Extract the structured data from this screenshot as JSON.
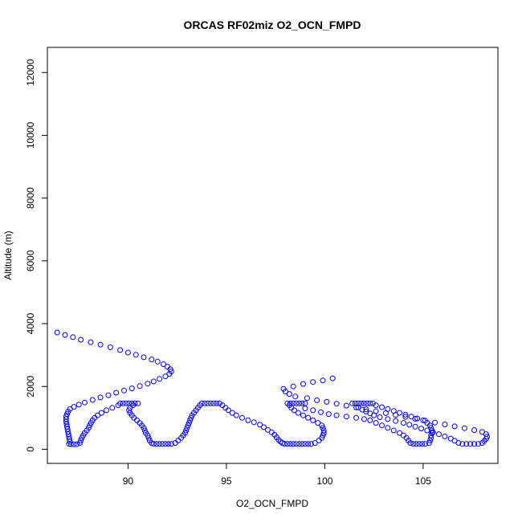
{
  "chart_data": {
    "type": "scatter",
    "title": "ORCAS RF02miz O2_OCN_FMPD",
    "xlabel": "O2_OCN_FMPD",
    "ylabel": "Altitude (m)",
    "xlim": [
      85.9,
      108.8
    ],
    "ylim": [
      -450,
      12800
    ],
    "x_ticks": [
      90,
      95,
      100,
      105
    ],
    "y_ticks": [
      0,
      2000,
      4000,
      6000,
      8000,
      10000,
      12000
    ],
    "marker": "open-circle",
    "color": "#0000ff",
    "series": [
      {
        "points": [
          [
            86.4,
            3720
          ],
          [
            86.8,
            3640
          ],
          [
            87.2,
            3570
          ],
          [
            87.6,
            3490
          ],
          [
            88.1,
            3410
          ],
          [
            88.6,
            3330
          ],
          [
            89.1,
            3250
          ],
          [
            89.6,
            3160
          ],
          [
            90.0,
            3080
          ],
          [
            90.4,
            3010
          ],
          [
            90.8,
            2930
          ],
          [
            91.2,
            2860
          ],
          [
            91.5,
            2790
          ],
          [
            91.8,
            2710
          ],
          [
            92.0,
            2630
          ],
          [
            92.15,
            2550
          ],
          [
            92.2,
            2480
          ],
          [
            92.1,
            2400
          ],
          [
            91.9,
            2320
          ],
          [
            91.6,
            2240
          ],
          [
            91.3,
            2160
          ],
          [
            91.0,
            2090
          ],
          [
            90.6,
            2010
          ],
          [
            90.2,
            1940
          ],
          [
            89.8,
            1870
          ],
          [
            89.4,
            1800
          ],
          [
            89.0,
            1720
          ],
          [
            88.6,
            1650
          ],
          [
            88.2,
            1570
          ],
          [
            87.8,
            1490
          ],
          [
            87.5,
            1420
          ],
          [
            87.25,
            1350
          ],
          [
            87.05,
            1280
          ],
          [
            86.95,
            1200
          ],
          [
            86.9,
            1120
          ],
          [
            86.85,
            1040
          ],
          [
            86.85,
            960
          ],
          [
            86.85,
            880
          ],
          [
            86.88,
            800
          ],
          [
            86.9,
            720
          ],
          [
            86.92,
            640
          ],
          [
            86.95,
            560
          ],
          [
            86.97,
            480
          ],
          [
            87.0,
            400
          ],
          [
            87.02,
            320
          ],
          [
            87.05,
            240
          ],
          [
            87.0,
            170
          ],
          [
            87.1,
            160
          ],
          [
            87.25,
            160
          ],
          [
            87.4,
            160
          ],
          [
            87.55,
            200
          ],
          [
            87.6,
            280
          ],
          [
            87.65,
            360
          ],
          [
            87.72,
            440
          ],
          [
            87.8,
            520
          ],
          [
            87.9,
            600
          ],
          [
            88.0,
            680
          ],
          [
            88.05,
            760
          ],
          [
            88.12,
            840
          ],
          [
            88.2,
            920
          ],
          [
            88.3,
            1000
          ],
          [
            88.45,
            1080
          ],
          [
            88.65,
            1160
          ],
          [
            88.9,
            1240
          ],
          [
            89.2,
            1320
          ],
          [
            89.5,
            1400
          ],
          [
            89.6,
            1460
          ],
          [
            89.75,
            1460
          ],
          [
            89.9,
            1460
          ],
          [
            90.05,
            1460
          ],
          [
            90.2,
            1460
          ],
          [
            90.35,
            1460
          ],
          [
            90.5,
            1460
          ],
          [
            90.25,
            1400
          ],
          [
            90.1,
            1320
          ],
          [
            90.05,
            1240
          ],
          [
            90.1,
            1160
          ],
          [
            90.2,
            1080
          ],
          [
            90.3,
            1000
          ],
          [
            90.45,
            920
          ],
          [
            90.6,
            840
          ],
          [
            90.7,
            760
          ],
          [
            90.8,
            680
          ],
          [
            90.85,
            600
          ],
          [
            90.9,
            520
          ],
          [
            91.0,
            440
          ],
          [
            91.05,
            360
          ],
          [
            91.1,
            280
          ],
          [
            91.2,
            200
          ],
          [
            91.3,
            170
          ],
          [
            91.45,
            170
          ],
          [
            91.6,
            170
          ],
          [
            91.75,
            170
          ],
          [
            91.9,
            170
          ],
          [
            92.05,
            170
          ],
          [
            92.2,
            170
          ],
          [
            92.4,
            200
          ],
          [
            92.55,
            280
          ],
          [
            92.7,
            360
          ],
          [
            92.8,
            440
          ],
          [
            92.9,
            520
          ],
          [
            92.95,
            600
          ],
          [
            93.0,
            680
          ],
          [
            93.05,
            760
          ],
          [
            93.1,
            840
          ],
          [
            93.15,
            920
          ],
          [
            93.2,
            1000
          ],
          [
            93.25,
            1080
          ],
          [
            93.35,
            1160
          ],
          [
            93.45,
            1240
          ],
          [
            93.55,
            1320
          ],
          [
            93.65,
            1400
          ],
          [
            93.75,
            1460
          ],
          [
            93.9,
            1460
          ],
          [
            94.05,
            1460
          ],
          [
            94.2,
            1460
          ],
          [
            94.35,
            1460
          ],
          [
            94.5,
            1460
          ],
          [
            94.65,
            1460
          ],
          [
            94.8,
            1400
          ],
          [
            94.95,
            1320
          ],
          [
            95.1,
            1240
          ],
          [
            95.3,
            1160
          ],
          [
            95.5,
            1080
          ],
          [
            95.8,
            1000
          ],
          [
            96.1,
            920
          ],
          [
            96.4,
            860
          ],
          [
            96.7,
            780
          ],
          [
            96.9,
            700
          ],
          [
            97.1,
            620
          ],
          [
            97.3,
            540
          ],
          [
            97.45,
            460
          ],
          [
            97.55,
            380
          ],
          [
            97.65,
            300
          ],
          [
            97.75,
            240
          ],
          [
            97.85,
            200
          ],
          [
            97.95,
            170
          ],
          [
            98.1,
            170
          ],
          [
            98.25,
            170
          ],
          [
            98.4,
            170
          ],
          [
            98.55,
            170
          ],
          [
            98.7,
            170
          ],
          [
            98.85,
            170
          ],
          [
            99.0,
            170
          ],
          [
            99.15,
            170
          ],
          [
            99.3,
            170
          ],
          [
            99.5,
            200
          ],
          [
            99.7,
            280
          ],
          [
            99.85,
            360
          ],
          [
            99.9,
            440
          ],
          [
            99.95,
            520
          ],
          [
            99.95,
            600
          ],
          [
            99.9,
            680
          ],
          [
            99.85,
            760
          ],
          [
            99.65,
            840
          ],
          [
            99.4,
            920
          ],
          [
            99.15,
            1000
          ],
          [
            98.9,
            1080
          ],
          [
            98.65,
            1160
          ],
          [
            98.45,
            1240
          ],
          [
            98.3,
            1320
          ],
          [
            98.2,
            1400
          ],
          [
            98.1,
            1460
          ],
          [
            98.25,
            1460
          ],
          [
            98.4,
            1460
          ],
          [
            98.55,
            1460
          ],
          [
            98.7,
            1460
          ],
          [
            98.85,
            1460
          ],
          [
            99.0,
            1460
          ],
          [
            97.9,
            1920
          ],
          [
            98.0,
            1840
          ],
          [
            98.4,
            2000
          ],
          [
            98.9,
            2080
          ],
          [
            99.4,
            2140
          ],
          [
            99.9,
            2190
          ],
          [
            100.4,
            2260
          ],
          [
            98.2,
            1760
          ],
          [
            98.5,
            1680
          ],
          [
            99.1,
            1630
          ],
          [
            99.6,
            1560
          ],
          [
            100.1,
            1510
          ],
          [
            100.6,
            1450
          ],
          [
            101.1,
            1390
          ],
          [
            101.6,
            1330
          ],
          [
            102.1,
            1270
          ],
          [
            102.6,
            1210
          ],
          [
            103.1,
            1150
          ],
          [
            103.6,
            1090
          ],
          [
            104.1,
            1030
          ],
          [
            104.6,
            970
          ],
          [
            105.1,
            910
          ],
          [
            105.6,
            850
          ],
          [
            106.1,
            790
          ],
          [
            106.6,
            730
          ],
          [
            107.1,
            670
          ],
          [
            107.6,
            610
          ],
          [
            108.0,
            550
          ],
          [
            108.2,
            480
          ],
          [
            108.25,
            400
          ],
          [
            108.2,
            330
          ],
          [
            108.1,
            260
          ],
          [
            108.0,
            200
          ],
          [
            107.8,
            170
          ],
          [
            107.6,
            170
          ],
          [
            107.4,
            170
          ],
          [
            107.2,
            170
          ],
          [
            107.0,
            170
          ],
          [
            106.8,
            200
          ],
          [
            106.6,
            270
          ],
          [
            106.4,
            340
          ],
          [
            106.1,
            410
          ],
          [
            105.8,
            480
          ],
          [
            105.5,
            540
          ],
          [
            105.2,
            600
          ],
          [
            104.9,
            660
          ],
          [
            104.6,
            720
          ],
          [
            104.3,
            780
          ],
          [
            104.0,
            840
          ],
          [
            103.6,
            900
          ],
          [
            103.2,
            960
          ],
          [
            102.8,
            1020
          ],
          [
            102.5,
            1080
          ],
          [
            102.3,
            1140
          ],
          [
            102.1,
            1200
          ],
          [
            101.9,
            1260
          ],
          [
            101.7,
            1330
          ],
          [
            101.4,
            1460
          ],
          [
            101.55,
            1460
          ],
          [
            101.7,
            1460
          ],
          [
            101.85,
            1460
          ],
          [
            102.0,
            1460
          ],
          [
            102.15,
            1460
          ],
          [
            102.3,
            1460
          ],
          [
            102.45,
            1460
          ],
          [
            102.6,
            1400
          ],
          [
            102.9,
            1340
          ],
          [
            103.2,
            1280
          ],
          [
            103.5,
            1220
          ],
          [
            103.8,
            1160
          ],
          [
            104.1,
            1100
          ],
          [
            104.4,
            1040
          ],
          [
            104.7,
            980
          ],
          [
            105.0,
            920
          ],
          [
            105.2,
            840
          ],
          [
            105.35,
            760
          ],
          [
            105.4,
            680
          ],
          [
            105.45,
            600
          ],
          [
            105.45,
            520
          ],
          [
            105.4,
            440
          ],
          [
            105.4,
            360
          ],
          [
            105.35,
            280
          ],
          [
            105.3,
            200
          ],
          [
            105.1,
            170
          ],
          [
            104.95,
            170
          ],
          [
            104.8,
            170
          ],
          [
            104.65,
            170
          ],
          [
            104.5,
            170
          ],
          [
            104.35,
            200
          ],
          [
            104.25,
            280
          ],
          [
            104.15,
            360
          ],
          [
            104.0,
            440
          ],
          [
            103.8,
            520
          ],
          [
            103.5,
            600
          ],
          [
            103.2,
            680
          ],
          [
            102.9,
            760
          ],
          [
            102.6,
            840
          ],
          [
            102.3,
            920
          ],
          [
            102.0,
            960
          ],
          [
            101.6,
            1000
          ],
          [
            101.1,
            1040
          ],
          [
            100.6,
            1080
          ],
          [
            100.2,
            1120
          ],
          [
            99.8,
            1180
          ],
          [
            99.4,
            1240
          ],
          [
            99.0,
            1300
          ]
        ]
      }
    ],
    "grid": false
  }
}
